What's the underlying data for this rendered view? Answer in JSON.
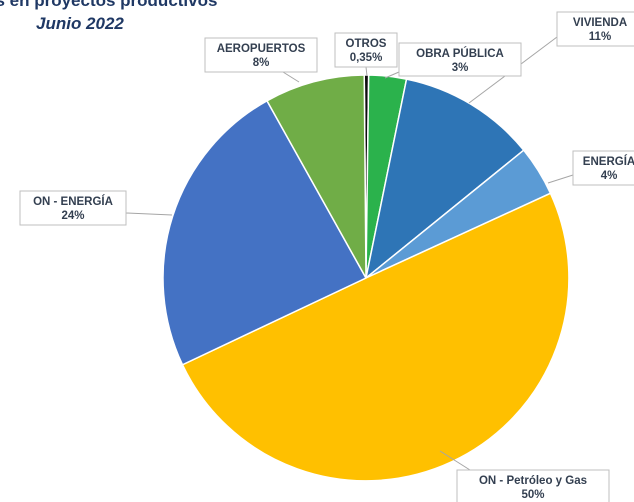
{
  "chart_data": {
    "type": "pie",
    "title": "es en proyectos productivos",
    "subtitle": "Junio 2022",
    "slices": [
      {
        "label": "OTROS",
        "value_label": "0,35%",
        "value": 0.35,
        "color": "#0d0d0d"
      },
      {
        "label": "OBRA  PÚBLICA",
        "value_label": "3%",
        "value": 3,
        "color": "#2bb24c"
      },
      {
        "label": "VIVIENDA",
        "value_label": "11%",
        "value": 11,
        "color": "#2e75b6"
      },
      {
        "label": "ENERGÍA",
        "value_label": "4%",
        "value": 4,
        "color": "#5b9bd5"
      },
      {
        "label": "ON - Petróleo y Gas",
        "value_label": "50%",
        "value": 50,
        "color": "#ffc000"
      },
      {
        "label": "ON - ENERGÍA",
        "value_label": "24%",
        "value": 24,
        "color": "#4472c4"
      },
      {
        "label": "AEROPUERTOS",
        "value_label": "8%",
        "value": 8,
        "color": "#70ad47"
      }
    ]
  }
}
